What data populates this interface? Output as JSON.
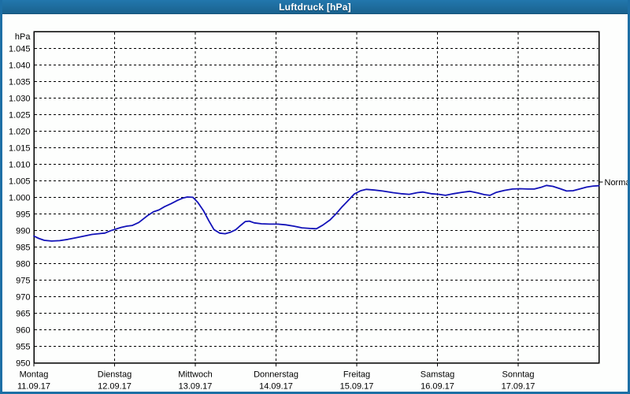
{
  "window": {
    "title": "Luftdruck [hPa]"
  },
  "colors": {
    "frame_blue": "#1d6fa5",
    "title_text": "#ffffff",
    "plot_background": "#fdfefd",
    "grid": "#000000",
    "axis": "#000000",
    "curve_blue": "#1212b8",
    "label_text": "#000000"
  },
  "chart_data": {
    "type": "line",
    "title": "Luftdruck [hPa]",
    "unit_label": "hPa",
    "ylim": [
      950,
      1050
    ],
    "grid": "dashed",
    "legend_position": "none",
    "y_ticks": [
      1045,
      1040,
      1035,
      1030,
      1025,
      1020,
      1015,
      1010,
      1005,
      1000,
      995,
      990,
      985,
      980,
      975,
      970,
      965,
      960,
      955,
      950
    ],
    "y_tick_labels": [
      "1.045",
      "1.040",
      "1.035",
      "1.030",
      "1.025",
      "1.020",
      "1.015",
      "1.010",
      "1.005",
      "1.000",
      "995",
      "990",
      "985",
      "980",
      "975",
      "970",
      "965",
      "960",
      "955",
      "950"
    ],
    "x_span_days": 7,
    "x_categories": [
      {
        "day": "Montag",
        "date": "11.09.17"
      },
      {
        "day": "Dienstag",
        "date": "12.09.17"
      },
      {
        "day": "Mittwoch",
        "date": "13.09.17"
      },
      {
        "day": "Donnerstag",
        "date": "14.09.17"
      },
      {
        "day": "Freitag",
        "date": "15.09.17"
      },
      {
        "day": "Samstag",
        "date": "16.09.17"
      },
      {
        "day": "Sonntag",
        "date": "17.09.17"
      }
    ],
    "normal_marker": {
      "label": "Normal",
      "value": 1004.6
    },
    "series": [
      {
        "name": "Luftdruck",
        "color": "#1212b8",
        "points": [
          [
            0.0,
            988.3
          ],
          [
            0.06,
            987.6
          ],
          [
            0.13,
            987.0
          ],
          [
            0.22,
            986.8
          ],
          [
            0.32,
            986.9
          ],
          [
            0.42,
            987.3
          ],
          [
            0.52,
            987.8
          ],
          [
            0.62,
            988.3
          ],
          [
            0.72,
            988.8
          ],
          [
            0.8,
            989.0
          ],
          [
            0.88,
            989.2
          ],
          [
            0.95,
            989.9
          ],
          [
            1.0,
            990.3
          ],
          [
            1.08,
            990.9
          ],
          [
            1.15,
            991.3
          ],
          [
            1.22,
            991.5
          ],
          [
            1.3,
            992.4
          ],
          [
            1.4,
            994.3
          ],
          [
            1.48,
            995.6
          ],
          [
            1.55,
            996.2
          ],
          [
            1.62,
            997.2
          ],
          [
            1.7,
            998.1
          ],
          [
            1.78,
            999.1
          ],
          [
            1.85,
            999.8
          ],
          [
            1.9,
            1000.1
          ],
          [
            1.97,
            1000.0
          ],
          [
            2.03,
            998.5
          ],
          [
            2.1,
            996.0
          ],
          [
            2.17,
            992.8
          ],
          [
            2.23,
            990.3
          ],
          [
            2.3,
            989.2
          ],
          [
            2.37,
            989.0
          ],
          [
            2.43,
            989.4
          ],
          [
            2.5,
            990.2
          ],
          [
            2.55,
            991.3
          ],
          [
            2.62,
            992.7
          ],
          [
            2.67,
            992.8
          ],
          [
            2.73,
            992.3
          ],
          [
            2.82,
            992.0
          ],
          [
            2.92,
            991.9
          ],
          [
            3.02,
            991.9
          ],
          [
            3.12,
            991.7
          ],
          [
            3.22,
            991.3
          ],
          [
            3.32,
            990.8
          ],
          [
            3.42,
            990.6
          ],
          [
            3.5,
            990.5
          ],
          [
            3.58,
            991.6
          ],
          [
            3.67,
            993.2
          ],
          [
            3.75,
            995.2
          ],
          [
            3.82,
            997.2
          ],
          [
            3.9,
            999.2
          ],
          [
            3.97,
            1001.0
          ],
          [
            4.05,
            1002.0
          ],
          [
            4.12,
            1002.4
          ],
          [
            4.22,
            1002.2
          ],
          [
            4.32,
            1001.9
          ],
          [
            4.45,
            1001.4
          ],
          [
            4.55,
            1001.1
          ],
          [
            4.65,
            1000.9
          ],
          [
            4.75,
            1001.4
          ],
          [
            4.82,
            1001.6
          ],
          [
            4.92,
            1001.1
          ],
          [
            5.02,
            1000.9
          ],
          [
            5.1,
            1000.6
          ],
          [
            5.2,
            1001.1
          ],
          [
            5.3,
            1001.5
          ],
          [
            5.4,
            1001.8
          ],
          [
            5.5,
            1001.3
          ],
          [
            5.58,
            1000.8
          ],
          [
            5.65,
            1000.6
          ],
          [
            5.73,
            1001.5
          ],
          [
            5.83,
            1002.1
          ],
          [
            5.93,
            1002.5
          ],
          [
            6.02,
            1002.6
          ],
          [
            6.12,
            1002.5
          ],
          [
            6.2,
            1002.5
          ],
          [
            6.28,
            1003.0
          ],
          [
            6.35,
            1003.6
          ],
          [
            6.43,
            1003.3
          ],
          [
            6.52,
            1002.6
          ],
          [
            6.6,
            1001.9
          ],
          [
            6.68,
            1002.0
          ],
          [
            6.76,
            1002.5
          ],
          [
            6.85,
            1003.1
          ],
          [
            6.93,
            1003.4
          ],
          [
            7.0,
            1003.5
          ]
        ]
      }
    ]
  }
}
